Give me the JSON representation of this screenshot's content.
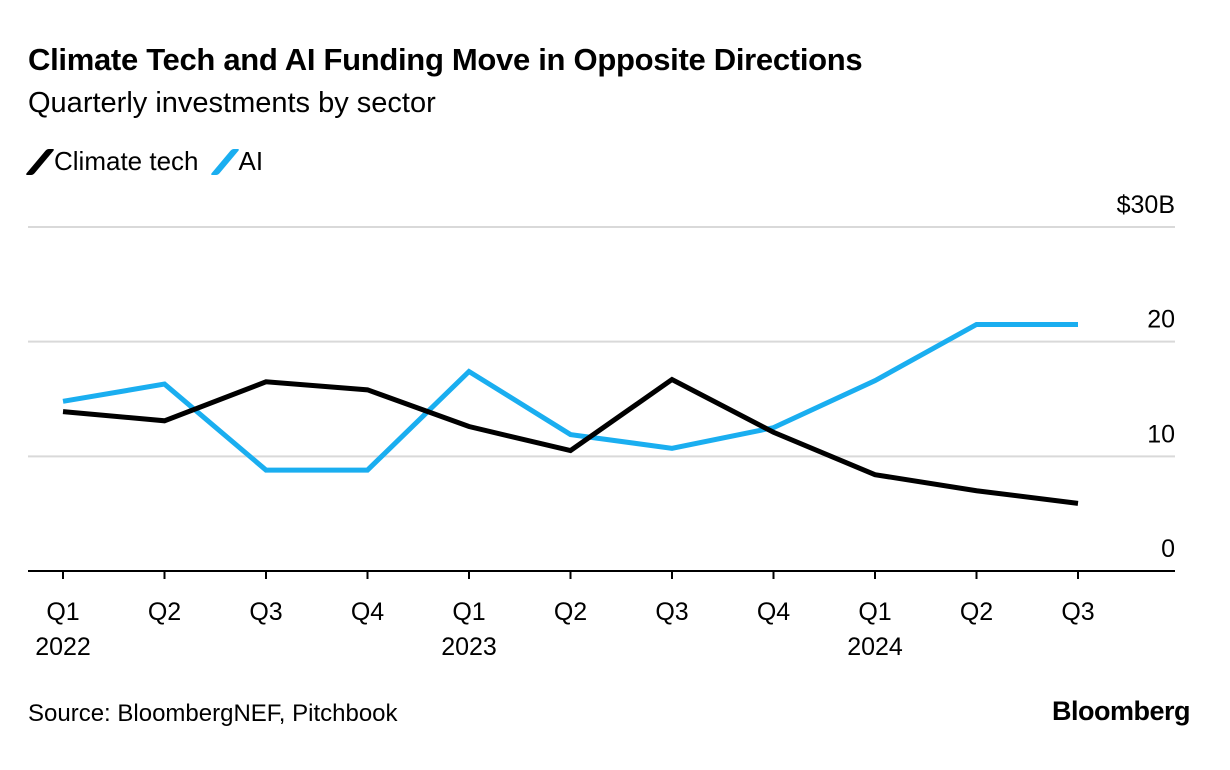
{
  "chart_data": {
    "type": "line",
    "title": "Climate Tech and AI Funding Move in Opposite Directions",
    "subtitle": "Quarterly investments by sector",
    "categories": [
      "Q1 2022",
      "Q2 2022",
      "Q3 2022",
      "Q4 2022",
      "Q1 2023",
      "Q2 2023",
      "Q3 2023",
      "Q4 2023",
      "Q1 2024",
      "Q2 2024",
      "Q3 2024"
    ],
    "x_tick_labels": [
      {
        "q": "Q1",
        "year": "2022"
      },
      {
        "q": "Q2",
        "year": ""
      },
      {
        "q": "Q3",
        "year": ""
      },
      {
        "q": "Q4",
        "year": ""
      },
      {
        "q": "Q1",
        "year": "2023"
      },
      {
        "q": "Q2",
        "year": ""
      },
      {
        "q": "Q3",
        "year": ""
      },
      {
        "q": "Q4",
        "year": ""
      },
      {
        "q": "Q1",
        "year": "2024"
      },
      {
        "q": "Q2",
        "year": ""
      },
      {
        "q": "Q3",
        "year": ""
      }
    ],
    "y_ticks": [
      0,
      10,
      20,
      30
    ],
    "y_tick_labels": [
      "0",
      "10",
      "20",
      "$30B"
    ],
    "ylim": [
      0,
      30
    ],
    "grid": true,
    "legend_placement": "top-left",
    "series": [
      {
        "name": "Climate tech",
        "color": "#000000",
        "values": [
          13.9,
          13.1,
          16.5,
          15.8,
          12.6,
          10.5,
          16.7,
          12.1,
          8.4,
          7.0,
          5.9
        ]
      },
      {
        "name": "AI",
        "color": "#1aaef0",
        "values": [
          14.8,
          16.3,
          8.8,
          8.8,
          17.4,
          11.9,
          10.7,
          12.5,
          16.6,
          21.5,
          21.5
        ]
      }
    ]
  },
  "footer": {
    "source": "Source: BloombergNEF, Pitchbook",
    "logo": "Bloomberg"
  }
}
